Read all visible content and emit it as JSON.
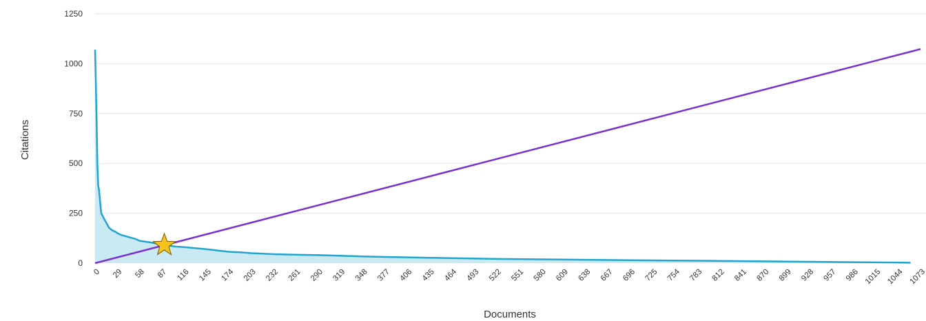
{
  "chart_data": {
    "type": "area",
    "xlabel": "Documents",
    "ylabel": "Citations",
    "xlim": [
      0,
      1073
    ],
    "ylim": [
      0,
      1250
    ],
    "y_ticks": [
      0,
      250,
      500,
      750,
      1000,
      1250
    ],
    "x_ticks": [
      0,
      29,
      58,
      87,
      116,
      145,
      174,
      203,
      232,
      261,
      290,
      319,
      348,
      377,
      406,
      435,
      464,
      493,
      522,
      551,
      580,
      609,
      638,
      667,
      696,
      725,
      754,
      783,
      812,
      841,
      870,
      899,
      928,
      957,
      986,
      1015,
      1044,
      1073
    ],
    "grid": "horizontal",
    "series": [
      {
        "type": "area",
        "color": "#1fa5cf",
        "fill": "#cbe9f3",
        "x": [
          0,
          1,
          2,
          3,
          4,
          5,
          6,
          8,
          10,
          12,
          15,
          18,
          22,
          26,
          30,
          35,
          40,
          46,
          52,
          58,
          65,
          72,
          80,
          87,
          95,
          105,
          116,
          130,
          145,
          160,
          174,
          190,
          203,
          232,
          261,
          290,
          319,
          348,
          377,
          406,
          435,
          464,
          493,
          522,
          580,
          638,
          696,
          754,
          812,
          870,
          928,
          986,
          1044,
          1060
        ],
        "y": [
          1070,
          900,
          720,
          500,
          390,
          370,
          330,
          250,
          235,
          220,
          200,
          178,
          165,
          158,
          148,
          140,
          135,
          128,
          122,
          112,
          108,
          104,
          98,
          93,
          88,
          83,
          80,
          75,
          70,
          63,
          57,
          54,
          50,
          45,
          42,
          40,
          37,
          34,
          31,
          29,
          27,
          25,
          23,
          21,
          19,
          17,
          15,
          13,
          11,
          9,
          7,
          5,
          3,
          2
        ]
      },
      {
        "type": "line",
        "color": "#7b2fd0",
        "x": [
          0,
          1073
        ],
        "y": [
          0,
          1073
        ]
      }
    ],
    "marker": {
      "shape": "star",
      "x": 90,
      "y": 90,
      "fill": "#f7c21b",
      "stroke": "#7a5a00"
    }
  }
}
